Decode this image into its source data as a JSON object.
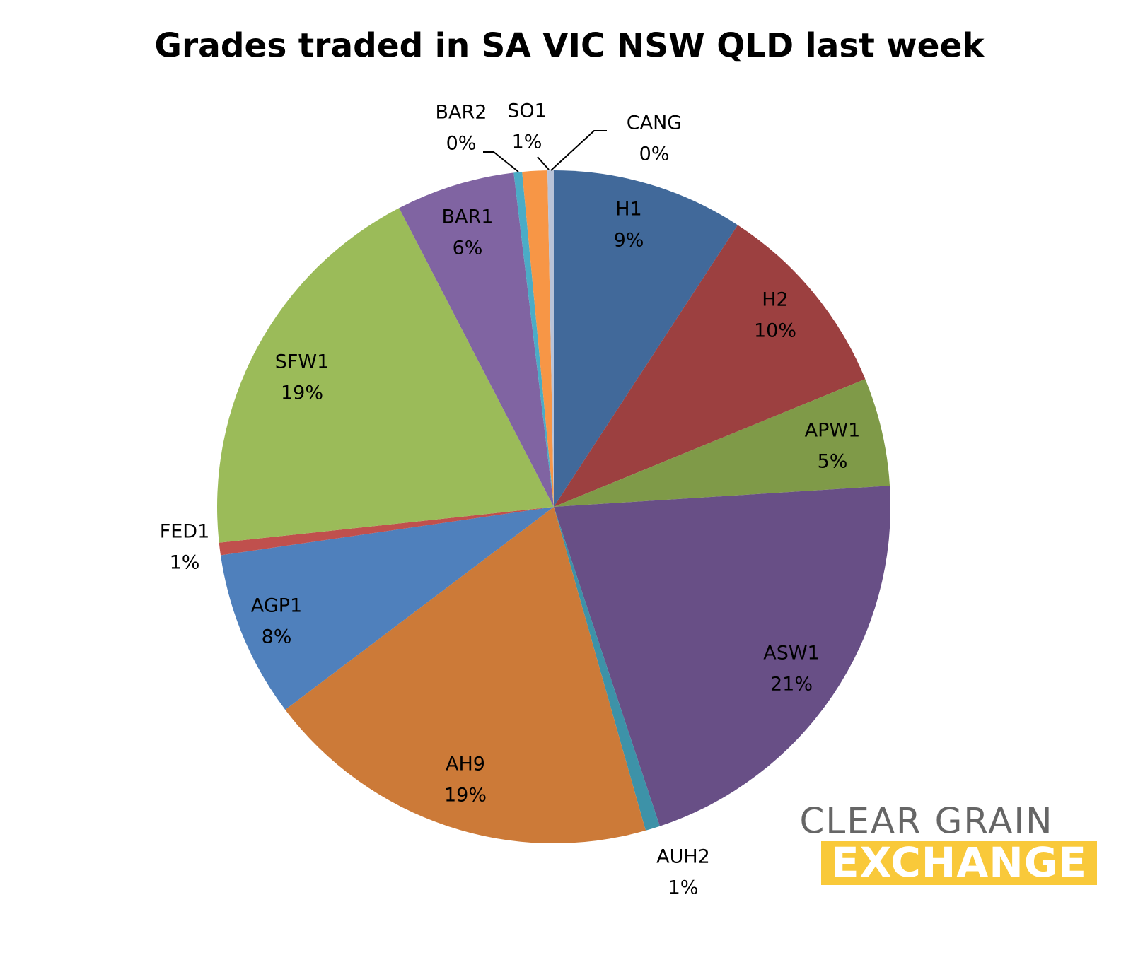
{
  "chart_data": {
    "type": "pie",
    "title": "Grades traded in SA VIC NSW QLD last week",
    "categories": [
      "H1",
      "H2",
      "APW1",
      "ASW1",
      "AUH2",
      "AH9",
      "AGP1",
      "FED1",
      "SFW1",
      "BAR1",
      "BAR2",
      "SO1",
      "CANG"
    ],
    "values": [
      9.2,
      9.6,
      5.2,
      20.9,
      0.7,
      19.1,
      8.0,
      0.6,
      19.1,
      5.7,
      0.4,
      1.2,
      0.3
    ],
    "value_labels": [
      "9%",
      "10%",
      "5%",
      "21%",
      "1%",
      "19%",
      "8%",
      "1%",
      "19%",
      "6%",
      "0%",
      "1%",
      "0%"
    ],
    "colors": [
      "#41699a",
      "#9c4040",
      "#7f9a48",
      "#684f86",
      "#3d92a8",
      "#cc7a38",
      "#4f80bc",
      "#c0504d",
      "#9bbb59",
      "#8064a2",
      "#4bacc6",
      "#f79646",
      "#b9c3d8"
    ]
  },
  "logo": {
    "line1": "CLEAR GRAIN",
    "line2": "EXCHANGE"
  }
}
